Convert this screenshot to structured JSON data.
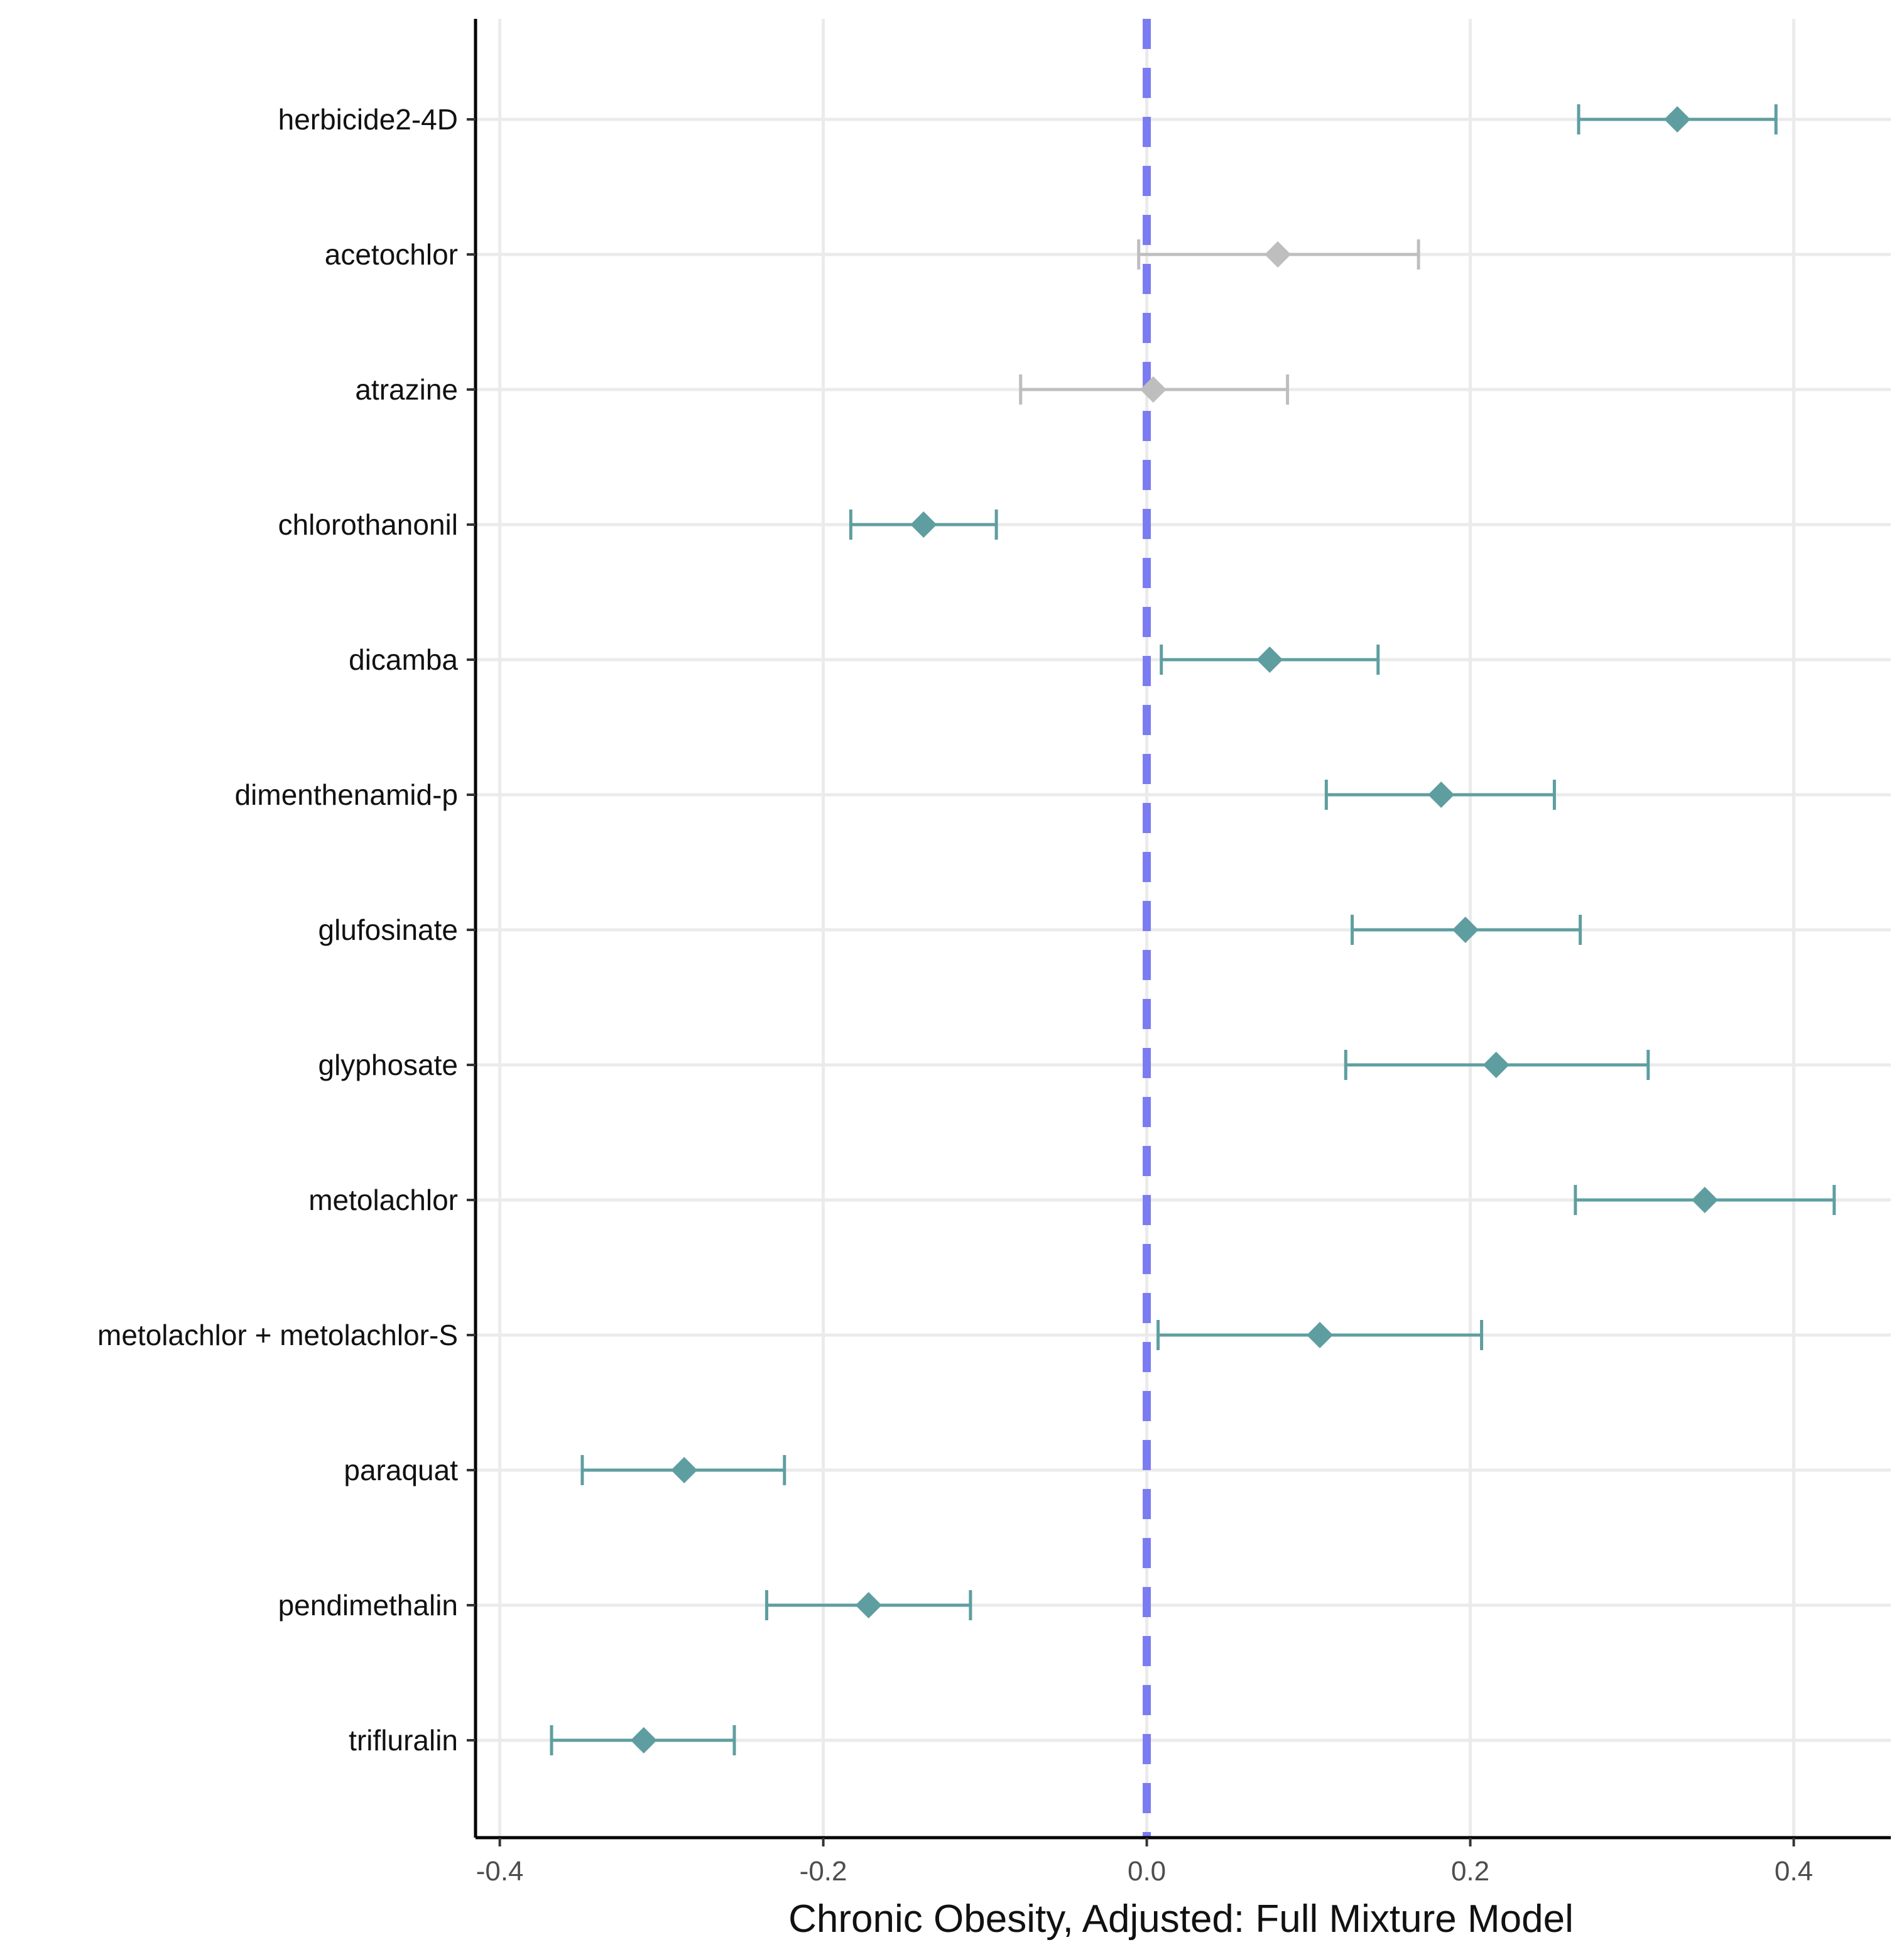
{
  "chart_data": {
    "type": "forest",
    "xlabel": "Chronic Obesity, Adjusted: Full Mixture Model",
    "ylabel": "",
    "xlim": [
      -0.415,
      0.46
    ],
    "x_ticks": [
      -0.4,
      -0.2,
      0.0,
      0.2,
      0.4
    ],
    "x_tick_labels": [
      "-0.4",
      "-0.2",
      "0.0",
      "0.2",
      "0.4"
    ],
    "reference_line": {
      "x": 0.0,
      "style": "dashed",
      "color": "#7b7bf2"
    },
    "grid": true,
    "colors": {
      "significant": "#5f9ea0",
      "not_significant": "#bebebe"
    },
    "series": [
      {
        "name": "herbicide2-4D",
        "estimate": 0.328,
        "lower": 0.267,
        "upper": 0.389,
        "significant": true
      },
      {
        "name": "acetochlor",
        "estimate": 0.081,
        "lower": -0.005,
        "upper": 0.168,
        "significant": false
      },
      {
        "name": "atrazine",
        "estimate": 0.004,
        "lower": -0.078,
        "upper": 0.087,
        "significant": false
      },
      {
        "name": "chlorothanonil",
        "estimate": -0.138,
        "lower": -0.183,
        "upper": -0.093,
        "significant": true
      },
      {
        "name": "dicamba",
        "estimate": 0.076,
        "lower": 0.009,
        "upper": 0.143,
        "significant": true
      },
      {
        "name": "dimenthenamid-p",
        "estimate": 0.182,
        "lower": 0.111,
        "upper": 0.252,
        "significant": true
      },
      {
        "name": "glufosinate",
        "estimate": 0.197,
        "lower": 0.127,
        "upper": 0.268,
        "significant": true
      },
      {
        "name": "glyphosate",
        "estimate": 0.216,
        "lower": 0.123,
        "upper": 0.31,
        "significant": true
      },
      {
        "name": "metolachlor",
        "estimate": 0.345,
        "lower": 0.265,
        "upper": 0.425,
        "significant": true
      },
      {
        "name": "metolachlor + metolachlor-S",
        "estimate": 0.107,
        "lower": 0.007,
        "upper": 0.207,
        "significant": true
      },
      {
        "name": "paraquat",
        "estimate": -0.286,
        "lower": -0.349,
        "upper": -0.224,
        "significant": true
      },
      {
        "name": "pendimethalin",
        "estimate": -0.172,
        "lower": -0.235,
        "upper": -0.109,
        "significant": true
      },
      {
        "name": "trifluralin",
        "estimate": -0.311,
        "lower": -0.368,
        "upper": -0.255,
        "significant": true
      }
    ]
  }
}
